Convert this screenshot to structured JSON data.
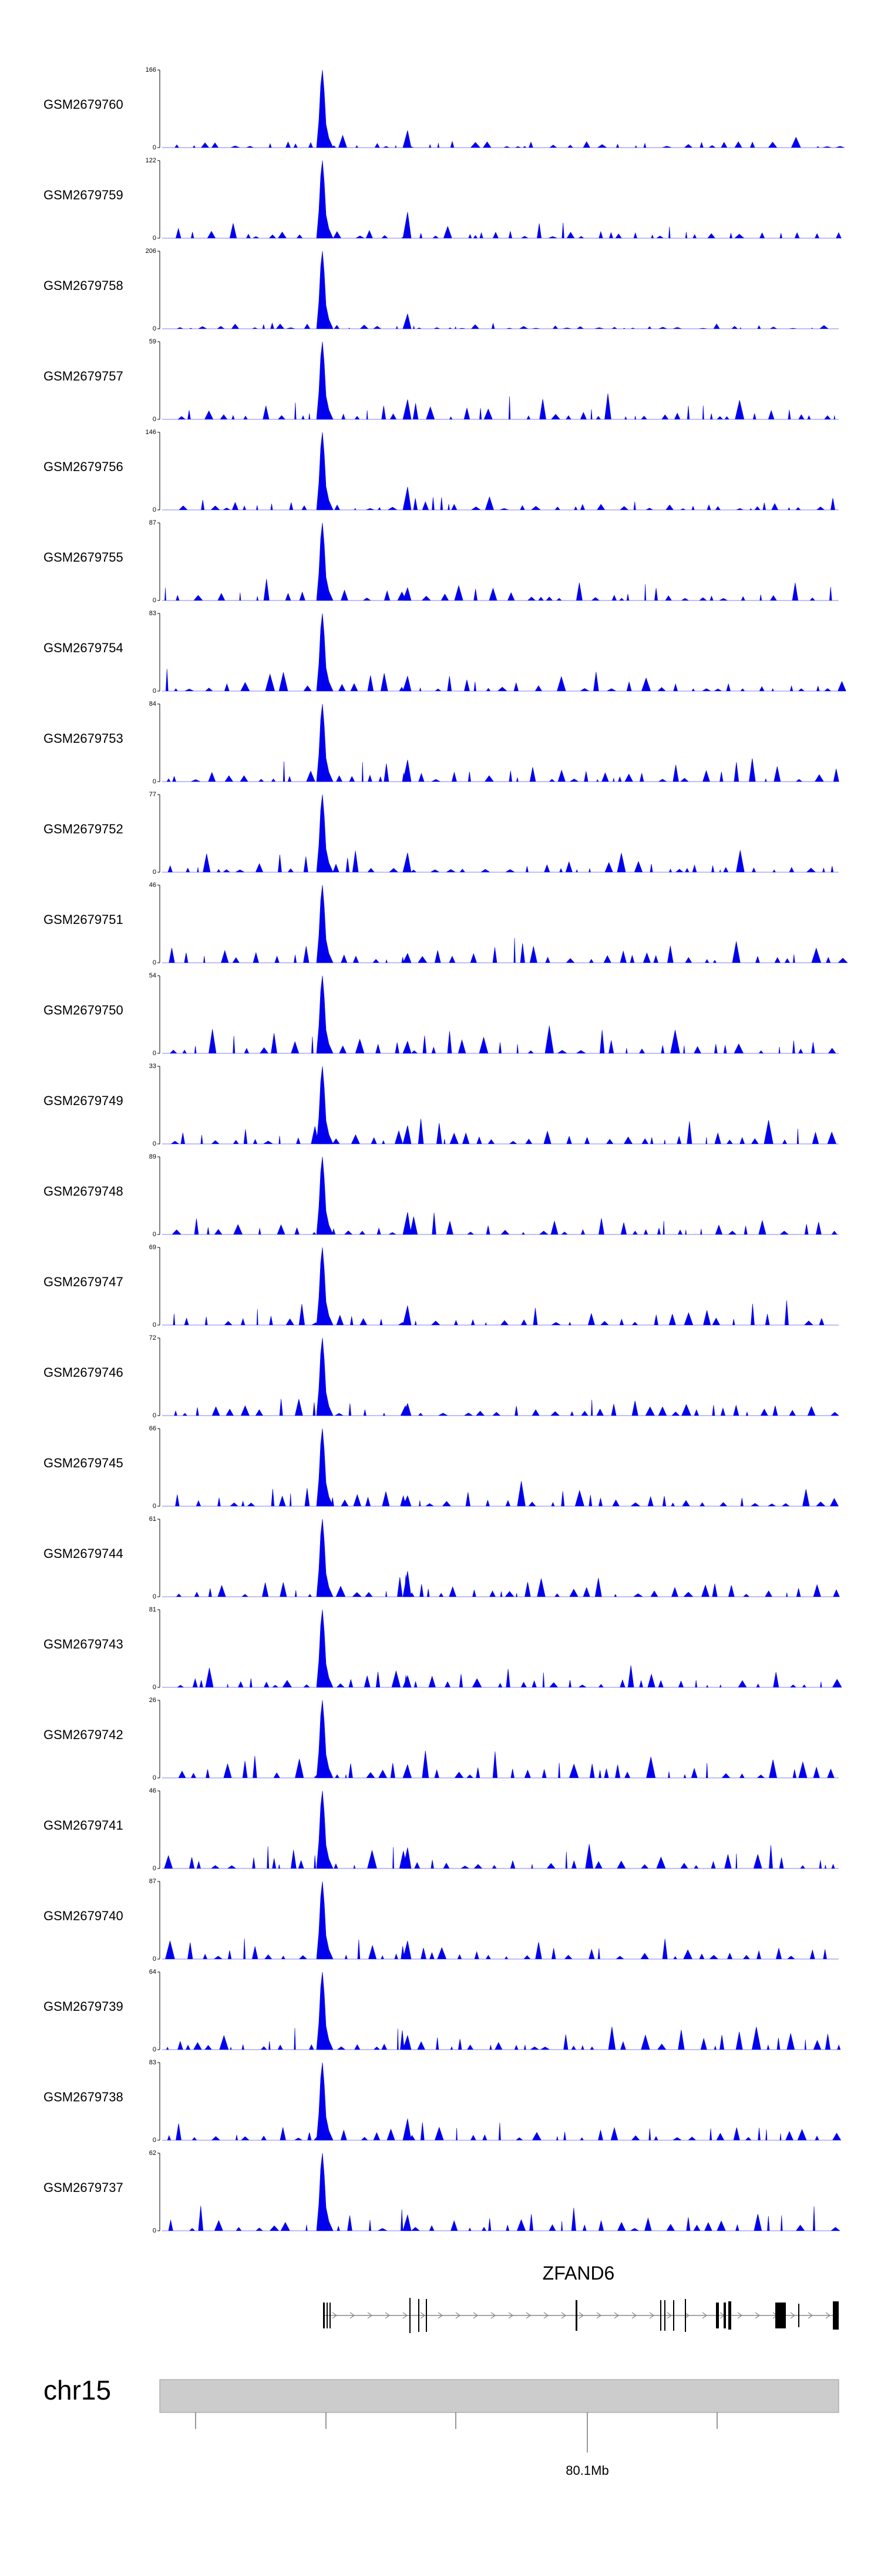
{
  "chart_data": {
    "type": "area",
    "color": "#0000ee",
    "y_min_label": "0",
    "tracks": [
      {
        "name": "GSM2679760",
        "ymax": 166
      },
      {
        "name": "GSM2679759",
        "ymax": 122
      },
      {
        "name": "GSM2679758",
        "ymax": 206
      },
      {
        "name": "GSM2679757",
        "ymax": 59
      },
      {
        "name": "GSM2679756",
        "ymax": 146
      },
      {
        "name": "GSM2679755",
        "ymax": 87
      },
      {
        "name": "GSM2679754",
        "ymax": 83
      },
      {
        "name": "GSM2679753",
        "ymax": 84
      },
      {
        "name": "GSM2679752",
        "ymax": 77
      },
      {
        "name": "GSM2679751",
        "ymax": 46
      },
      {
        "name": "GSM2679750",
        "ymax": 54
      },
      {
        "name": "GSM2679749",
        "ymax": 33
      },
      {
        "name": "GSM2679748",
        "ymax": 89
      },
      {
        "name": "GSM2679747",
        "ymax": 69
      },
      {
        "name": "GSM2679746",
        "ymax": 72
      },
      {
        "name": "GSM2679745",
        "ymax": 66
      },
      {
        "name": "GSM2679744",
        "ymax": 61
      },
      {
        "name": "GSM2679743",
        "ymax": 81
      },
      {
        "name": "GSM2679742",
        "ymax": 26
      },
      {
        "name": "GSM2679741",
        "ymax": 46
      },
      {
        "name": "GSM2679740",
        "ymax": 87
      },
      {
        "name": "GSM2679739",
        "ymax": 64
      },
      {
        "name": "GSM2679738",
        "ymax": 83
      },
      {
        "name": "GSM2679737",
        "ymax": 62
      }
    ],
    "gene": {
      "name": "ZFAND6",
      "strand": "+"
    },
    "chromosome": "chr15",
    "axis_tick_label": "80.1Mb"
  }
}
